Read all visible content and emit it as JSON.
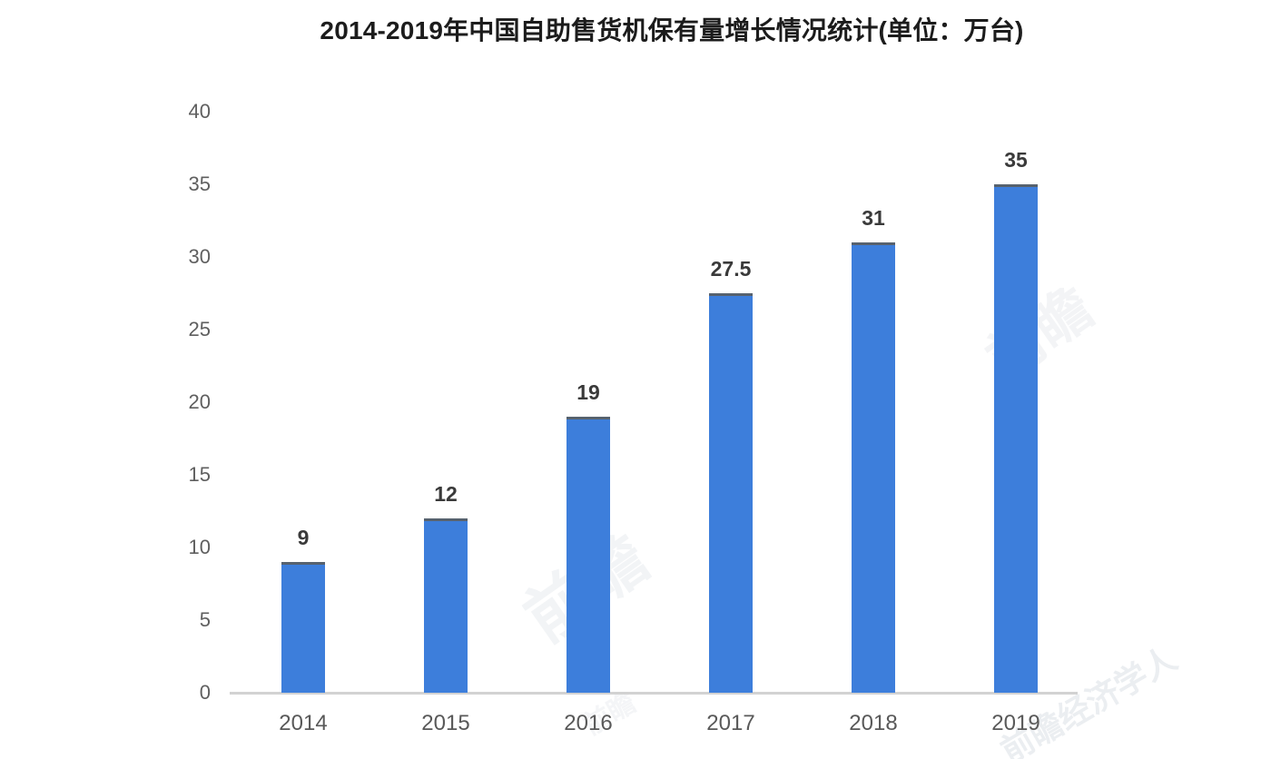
{
  "page": {
    "background": "#ffffff"
  },
  "chart_data": {
    "type": "bar",
    "title": "2014-2019年中国自助售货机保有量增长情况统计(单位：万台)",
    "categories": [
      "2014",
      "2015",
      "2016",
      "2017",
      "2018",
      "2019"
    ],
    "values": [
      9,
      12,
      19,
      27.5,
      31,
      35
    ],
    "value_labels": [
      "9",
      "12",
      "19",
      "27.5",
      "31",
      "35"
    ],
    "xlabel": "",
    "ylabel": "",
    "ylim": [
      0,
      40
    ],
    "yticks": [
      0,
      5,
      10,
      15,
      20,
      25,
      30,
      35,
      40
    ],
    "grid": false,
    "legend": "none",
    "bar_color": "#3d7edb",
    "bar_top_edge_color": "#57626e",
    "axis_line_color": "#d2d2d2",
    "value_label_color": "#3a3a3a",
    "tick_label_color": "#5f5f5f",
    "title_color": "#1c1c1c"
  },
  "watermarks": [
    {
      "text": "前瞻"
    },
    {
      "text": "前瞻"
    },
    {
      "text": "前瞻经济学人"
    },
    {
      "text": "前瞻"
    }
  ]
}
